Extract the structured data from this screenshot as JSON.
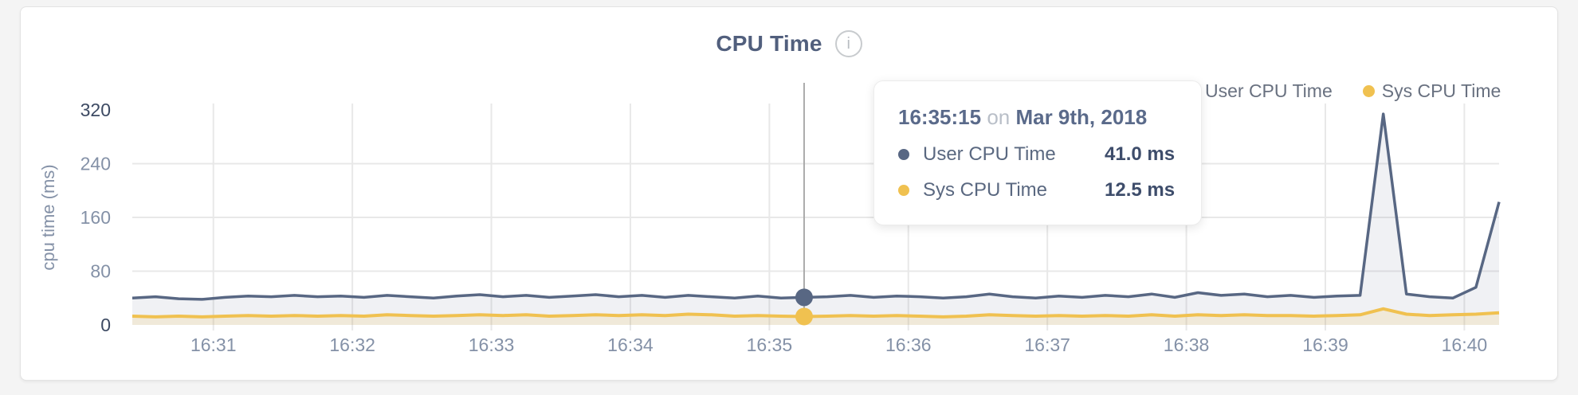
{
  "page": {
    "background": "#f4f4f4"
  },
  "chart": {
    "title": "CPU Time",
    "info_icon": "i",
    "legend": [
      {
        "label": "User CPU Time",
        "color": "#586783"
      },
      {
        "label": "Sys CPU Time",
        "color": "#f0c150"
      }
    ]
  },
  "tooltip": {
    "time": "16:35:15",
    "conjunction": "on",
    "date": "Mar 9th, 2018",
    "rows": [
      {
        "label": "User CPU Time",
        "value": "41.0 ms",
        "color": "#586783"
      },
      {
        "label": "Sys CPU Time",
        "value": "12.5 ms",
        "color": "#f0c150"
      }
    ]
  },
  "chart_data": {
    "type": "line",
    "title": "CPU Time",
    "xlabel": "",
    "ylabel": "cpu time (ms)",
    "ylim": [
      0,
      320
    ],
    "yticks": [
      0,
      80,
      160,
      240,
      320
    ],
    "yticks_dark": [
      0,
      320
    ],
    "xticks": [
      "16:31",
      "16:32",
      "16:33",
      "16:34",
      "16:35",
      "16:36",
      "16:37",
      "16:38",
      "16:39",
      "16:40"
    ],
    "x_start": "16:30:25",
    "x_end": "16:40:15",
    "sample_interval_s": 10,
    "grid": true,
    "legend_position": "top-right",
    "grid_color": "#e8e8e8",
    "crosshair_color": "#ababab",
    "axis_text_light": "#8491a7",
    "axis_text_dark": "#3d4a63",
    "selected": {
      "time": "16:35:15",
      "date": "Mar 9th, 2018",
      "index": 29,
      "user_ms": 41.0,
      "sys_ms": 12.5
    },
    "series": [
      {
        "name": "User CPU Time",
        "color": "#586783",
        "area_fill": "rgba(88,103,131,0.09)",
        "values": [
          40,
          42,
          39,
          38,
          41,
          43,
          42,
          44,
          42,
          43,
          41,
          44,
          42,
          40,
          43,
          45,
          42,
          44,
          41,
          43,
          45,
          42,
          44,
          41,
          44,
          42,
          40,
          43,
          40,
          41,
          42,
          44,
          41,
          43,
          42,
          40,
          42,
          46,
          42,
          40,
          43,
          41,
          44,
          42,
          46,
          41,
          48,
          44,
          46,
          42,
          44,
          41,
          43,
          44,
          314,
          46,
          42,
          40,
          56,
          183
        ]
      },
      {
        "name": "Sys CPU Time",
        "color": "#f0c150",
        "area_fill": "rgba(240,193,80,0.16)",
        "values": [
          13,
          12,
          13,
          12,
          13,
          14,
          13,
          14,
          13,
          14,
          13,
          15,
          14,
          13,
          14,
          15,
          14,
          15,
          13,
          14,
          15,
          14,
          15,
          14,
          16,
          15,
          13,
          14,
          13,
          12.5,
          13,
          14,
          13,
          14,
          13,
          12,
          13,
          15,
          14,
          13,
          14,
          13,
          14,
          13,
          15,
          13,
          15,
          14,
          15,
          14,
          14,
          13,
          14,
          15,
          24,
          16,
          14,
          15,
          16,
          18
        ]
      }
    ]
  }
}
